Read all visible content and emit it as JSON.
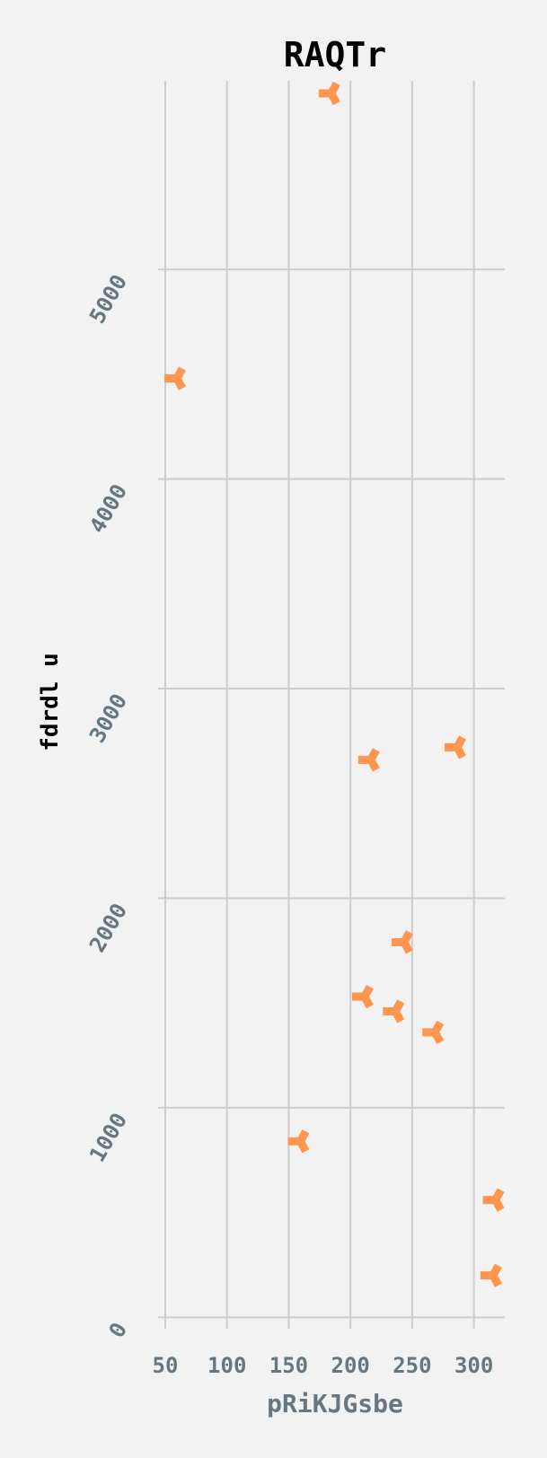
{
  "chart_data": {
    "type": "scatter",
    "title": "RAQTr",
    "xlabel": "pRiKJGsbe",
    "ylabel": "fdrdl u",
    "xlim": [
      50,
      325
    ],
    "ylim": [
      -20,
      5900
    ],
    "x_ticks": [
      50,
      100,
      150,
      200,
      250,
      300
    ],
    "y_ticks": [
      0,
      1000,
      2000,
      3000,
      4000,
      5000
    ],
    "grid": true,
    "marker": "tri-right",
    "colors": {
      "marker": "#ff964f",
      "grid": "#cccccc",
      "tick": "#66777f",
      "background": "#f2f2f2"
    },
    "series": [
      {
        "x": [
          183,
          58,
          215,
          285,
          242,
          210,
          235,
          267,
          158,
          316,
          314
        ],
        "y": [
          5840,
          4480,
          2660,
          2720,
          1790,
          1530,
          1460,
          1360,
          840,
          560,
          200
        ]
      }
    ]
  }
}
